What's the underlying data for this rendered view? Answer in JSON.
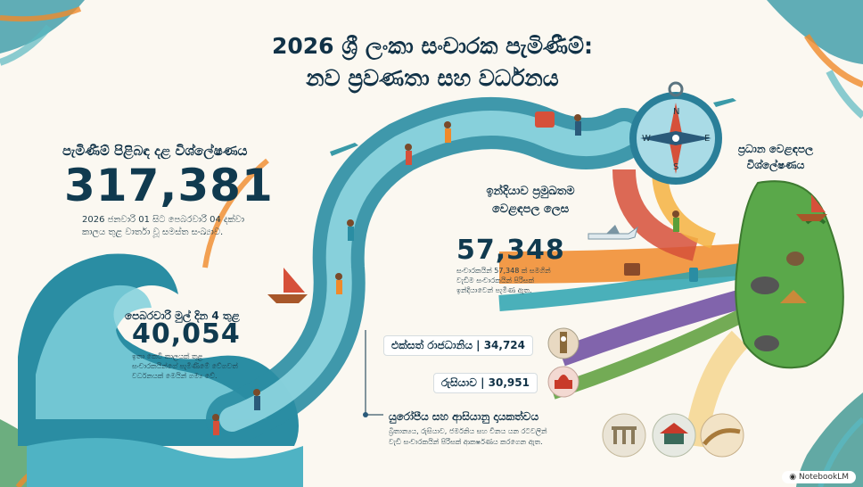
{
  "title": {
    "line1": "2026 ශ්‍රී ලංකා සංචාරක පැමිණීම්:",
    "line2": "නව ප්‍රවණතා සහ වර්ධනය"
  },
  "summary": {
    "heading": "පැමිණීම් පිළිබඳ දළ විශ්ලේෂණය",
    "value": "317,381",
    "note_line1": "2026 ජනවාරි 01 සිට පෙබරවාරි 04 දක්වා",
    "note_line2": "කාලය තුළ වාර්තා වූ සමස්ත සංඛ්‍යාව."
  },
  "february": {
    "heading": "පෙබරවාරි මුල් දින 4 තුළ",
    "value": "40,054",
    "note_line1": "ඉතා කෙටි කාලයක් තුළ",
    "note_line2": "සංචාරකයින්ගේ පැමිණීමේ වේගවත්",
    "note_line3": "වර්ධනයක් මෙයින් ගම්‍ය වේ."
  },
  "india": {
    "heading_line1": "ඉන්දියාව ප්‍රමුඛතම",
    "heading_line2": "වෙළඳපල ලෙස",
    "value": "57,348",
    "note_line1": "සංචාරකයින් 57,348 ක් සමගින්",
    "note_line2": "වැඩිම සංචාරකයින් පිරිසක්",
    "note_line3": "ඉන්දියාවෙන් පැමිණ ඇත."
  },
  "uk": {
    "label": "එක්සත් රාජධානිය",
    "value": "34,724"
  },
  "russia": {
    "label": "රුසියාව",
    "value": "30,951"
  },
  "europe": {
    "heading": "යුරෝපීය සහ ආසියානු දායකත්වය",
    "note_line1": "බ්‍රිතාන්‍යය, රුසියාව, ජර්මනිය සහ චීනය යන රටවලින්",
    "note_line2": "වැඩි සංචාරකයින් පිරිසක් ආකර්ෂණය කරගෙන ඇත."
  },
  "market": {
    "heading_line1": "ප්‍රධාන වෙළඳපල",
    "heading_line2": "විශ්ලේෂණය"
  },
  "compass": {
    "n": "N",
    "e": "E",
    "s": "S",
    "w": "W"
  },
  "badge": "NotebookLM",
  "colors": {
    "title": "#113247",
    "wave_dark": "#2a8da3",
    "wave_light": "#7fd0dc",
    "orange": "#f08a2a",
    "purple": "#6b4aa0",
    "green": "#5a9e3a",
    "red": "#d6503a"
  }
}
